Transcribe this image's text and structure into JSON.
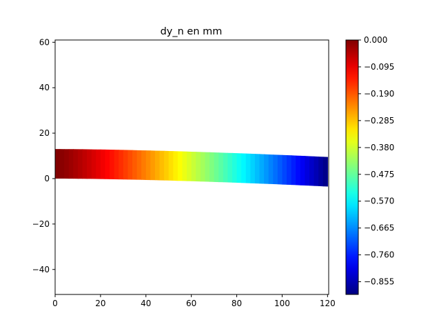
{
  "chart_data": {
    "type": "heatmap",
    "title": "dy_n en mm",
    "xlabel": "",
    "ylabel": "",
    "xlim": [
      0,
      120.5
    ],
    "ylim": [
      -51,
      61
    ],
    "x_ticks": [
      0,
      20,
      40,
      60,
      80,
      100,
      120
    ],
    "y_ticks": [
      -40,
      -20,
      0,
      20,
      40,
      60
    ],
    "x_tick_labels": [
      "0",
      "20",
      "40",
      "60",
      "80",
      "100",
      "120"
    ],
    "y_tick_labels": [
      "−40",
      "−20",
      "0",
      "20",
      "40",
      "60"
    ],
    "grid": false,
    "colormap": "jet",
    "colorbar": {
      "min": -0.9,
      "max": 0.0,
      "ticks": [
        0.0,
        -0.095,
        -0.19,
        -0.285,
        -0.38,
        -0.475,
        -0.57,
        -0.665,
        -0.76,
        -0.855
      ],
      "tick_labels": [
        "0.000",
        "−0.095",
        "−0.190",
        "−0.285",
        "−0.380",
        "−0.475",
        "−0.570",
        "−0.665",
        "−0.760",
        "−0.855"
      ]
    },
    "beam": {
      "x_start": 0,
      "x_end": 120,
      "height": 13,
      "deflection_at_end": -3.5,
      "displacement_start": 0.0,
      "displacement_end": -0.9
    }
  }
}
